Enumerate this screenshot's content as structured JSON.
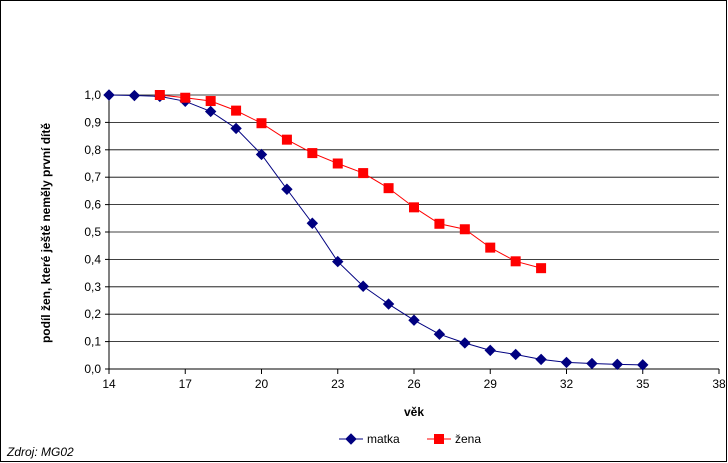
{
  "source_note": "Zdroj: MG02",
  "chart_data": {
    "type": "line",
    "title": "",
    "xlabel": "věk",
    "ylabel": "podíl žen, které ještě neměly první dítě",
    "xlim": [
      14,
      38
    ],
    "ylim": [
      0,
      1
    ],
    "x_ticks": [
      14,
      17,
      20,
      23,
      26,
      29,
      32,
      35,
      38
    ],
    "y_ticks": [
      0,
      0.1,
      0.2,
      0.3,
      0.4,
      0.5,
      0.6,
      0.7,
      0.8,
      0.9,
      1.0
    ],
    "y_tick_labels": [
      "0,0",
      "0,1",
      "0,2",
      "0,3",
      "0,4",
      "0,5",
      "0,6",
      "0,7",
      "0,8",
      "0,9",
      "1,0"
    ],
    "grid": "horizontal",
    "legend_position": "bottom",
    "series": [
      {
        "name": "matka",
        "color": "#000080",
        "marker": "diamond",
        "x": [
          14,
          15,
          16,
          17,
          18,
          19,
          20,
          21,
          22,
          23,
          24,
          25,
          26,
          27,
          28,
          29,
          30,
          31,
          32,
          33,
          34,
          35
        ],
        "y": [
          1.0,
          0.998,
          0.995,
          0.977,
          0.94,
          0.878,
          0.783,
          0.656,
          0.532,
          0.392,
          0.302,
          0.237,
          0.178,
          0.127,
          0.095,
          0.068,
          0.053,
          0.035,
          0.024,
          0.02,
          0.017,
          0.015
        ]
      },
      {
        "name": "žena",
        "color": "#ff0000",
        "marker": "square",
        "x": [
          16,
          17,
          18,
          19,
          20,
          21,
          22,
          23,
          24,
          25,
          26,
          27,
          28,
          29,
          30,
          31
        ],
        "y": [
          1.0,
          0.99,
          0.978,
          0.943,
          0.897,
          0.837,
          0.788,
          0.75,
          0.715,
          0.66,
          0.59,
          0.53,
          0.51,
          0.443,
          0.393,
          0.368
        ]
      }
    ]
  }
}
